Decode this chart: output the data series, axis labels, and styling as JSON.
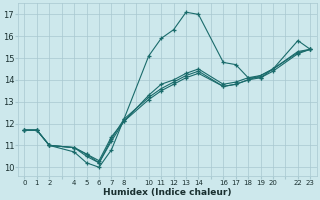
{
  "xlabel": "Humidex (Indice chaleur)",
  "bg_color": "#cde8ec",
  "grid_color": "#a8c8d0",
  "line_color": "#1a6b6b",
  "xticklabels": [
    "0",
    "1",
    "2",
    "",
    "4",
    "5",
    "6",
    "7",
    "8",
    "",
    "10",
    "11",
    "12",
    "13",
    "14",
    "",
    "16",
    "17",
    "18",
    "19",
    "20",
    "",
    "22",
    "23"
  ],
  "yticks": [
    10,
    11,
    12,
    13,
    14,
    15,
    16,
    17
  ],
  "ylim": [
    9.6,
    17.5
  ],
  "lines": [
    {
      "x": [
        0,
        1,
        2,
        4,
        5,
        6,
        7,
        8,
        10,
        11,
        12,
        13,
        14,
        16,
        17,
        18,
        19,
        20,
        22,
        23
      ],
      "y": [
        11.7,
        11.7,
        11.0,
        10.7,
        10.2,
        10.0,
        10.8,
        12.2,
        15.1,
        15.9,
        16.3,
        17.1,
        17.0,
        14.8,
        14.7,
        14.1,
        14.1,
        14.5,
        15.8,
        15.4
      ]
    },
    {
      "x": [
        0,
        1,
        2,
        4,
        5,
        6,
        7,
        8,
        10,
        11,
        12,
        13,
        14,
        16,
        17,
        18,
        19,
        20,
        22,
        23
      ],
      "y": [
        11.7,
        11.7,
        11.0,
        10.9,
        10.5,
        10.2,
        11.2,
        12.1,
        13.3,
        13.8,
        14.0,
        14.3,
        14.5,
        13.8,
        13.9,
        14.1,
        14.2,
        14.5,
        15.3,
        15.4
      ]
    },
    {
      "x": [
        0,
        1,
        2,
        4,
        5,
        6,
        7,
        8,
        10,
        11,
        12,
        13,
        14,
        16,
        17,
        18,
        19,
        20,
        22,
        23
      ],
      "y": [
        11.7,
        11.7,
        11.0,
        10.9,
        10.6,
        10.3,
        11.4,
        12.1,
        13.1,
        13.5,
        13.8,
        14.1,
        14.3,
        13.7,
        13.8,
        14.0,
        14.1,
        14.4,
        15.2,
        15.4
      ]
    },
    {
      "x": [
        0,
        1,
        2,
        4,
        5,
        6,
        7,
        8,
        10,
        11,
        12,
        13,
        14,
        16,
        17,
        18,
        19,
        20,
        22,
        23
      ],
      "y": [
        11.7,
        11.7,
        11.0,
        10.9,
        10.6,
        10.2,
        11.3,
        12.2,
        13.2,
        13.6,
        13.9,
        14.2,
        14.4,
        13.7,
        13.8,
        14.0,
        14.2,
        14.5,
        15.25,
        15.4
      ]
    }
  ]
}
